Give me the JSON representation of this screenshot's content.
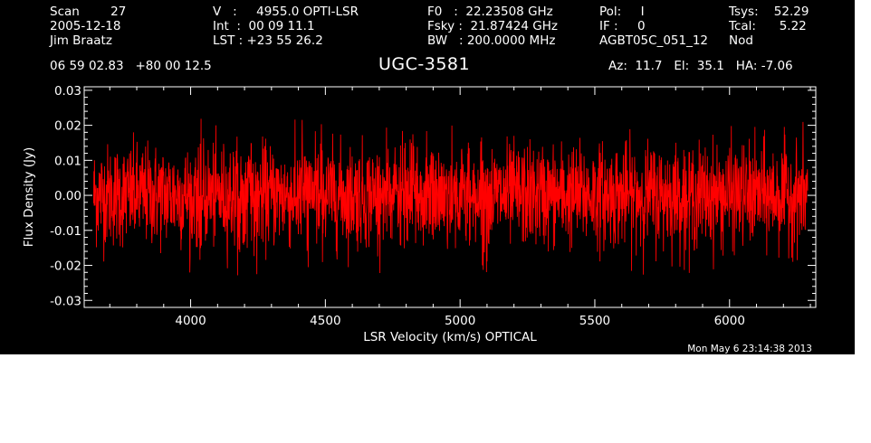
{
  "header": {
    "col1": [
      "Scan        27",
      "2005-12-18",
      "Jim Braatz"
    ],
    "col2": [
      "V   :     4955.0 OPTI-LSR",
      "Int  :  00 09 11.1",
      "LST : +23 55 26.2"
    ],
    "col3": [
      "F0   :  22.23508 GHz",
      "Fsky :  21.87424 GHz",
      "BW   : 200.0000 MHz"
    ],
    "col4": [
      "Pol:     I",
      "IF :     0",
      "AGBT05C_051_12"
    ],
    "col5": [
      "Tsys:    52.29",
      "Tcal:      5.22",
      "Nod"
    ],
    "coords": "06 59 02.83   +80 00 12.5",
    "source": "UGC-3581",
    "pointing": "Az:  11.7   El:  35.1   HA: -7.06"
  },
  "timestamp": "Mon May  6 23:14:38 2013",
  "colors": {
    "background": "#000000",
    "axes": "#ffffff",
    "trace": "#ff0000"
  },
  "chart_data": {
    "type": "line",
    "title": "UGC-3581",
    "xlabel": "LSR Velocity (km/s) OPTICAL",
    "ylabel": "Flux Density (Jy)",
    "xlim": [
      3605,
      6320
    ],
    "ylim": [
      -0.032,
      0.031
    ],
    "xticks": [
      4000,
      4500,
      5000,
      5500,
      6000
    ],
    "xtick_labels": [
      "4000",
      "4500",
      "5000",
      "5500",
      "6000"
    ],
    "yticks": [
      -0.03,
      -0.02,
      -0.01,
      0.0,
      0.01,
      0.02,
      0.03
    ],
    "ytick_labels": [
      "-0.03",
      "-0.02",
      "-0.01",
      "0.00",
      "0.01",
      "0.02",
      "0.03"
    ],
    "grid": false,
    "series": [
      {
        "data_range": [
          3640,
          6290
        ],
        "mean": 0.0,
        "rms": 0.0072,
        "peak_max": 0.022,
        "peak_min": -0.023
      }
    ]
  }
}
